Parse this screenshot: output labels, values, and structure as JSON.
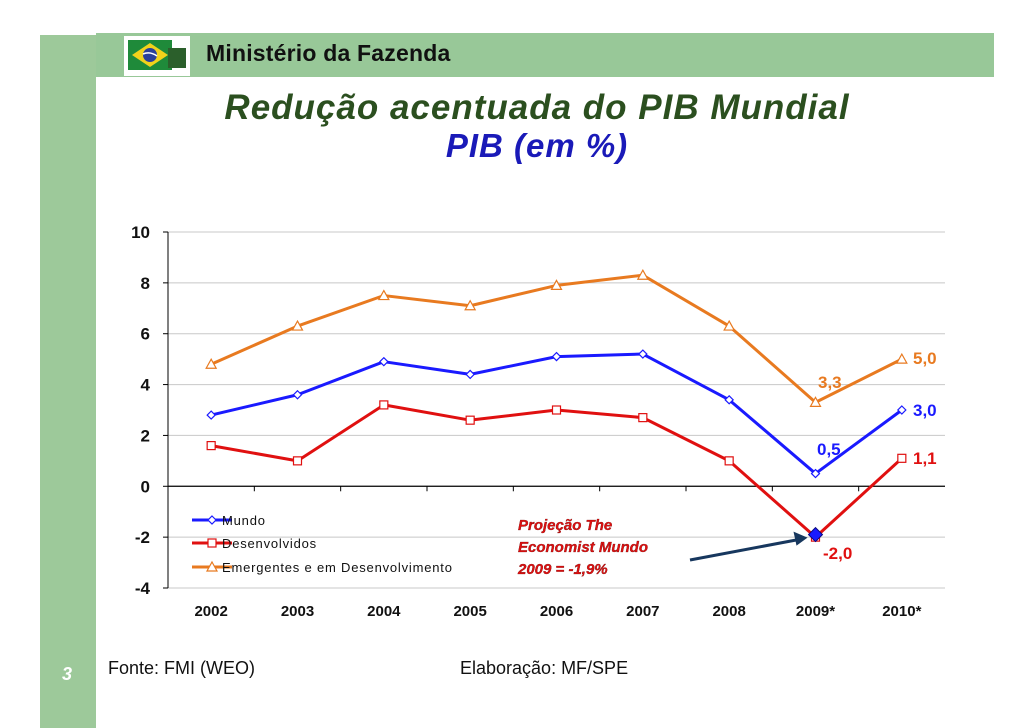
{
  "header": {
    "ministry": "Ministério da Fazenda",
    "logo": "brazil-flag-logo"
  },
  "title": {
    "line1": "Redução acentuada do PIB Mundial",
    "line2": "PIB (em %)"
  },
  "colors": {
    "mundo": "#1a1aff",
    "desenvolvidos": "#e01010",
    "emergentes": "#e87a20",
    "accent_green": "#98c898"
  },
  "chart_data": {
    "type": "line",
    "categories": [
      "2002",
      "2003",
      "2004",
      "2005",
      "2006",
      "2007",
      "2008",
      "2009*",
      "2010*"
    ],
    "ylim": [
      -4,
      10
    ],
    "yticks": [
      "-4",
      "-2",
      "0",
      "2",
      "4",
      "6",
      "8",
      "10"
    ],
    "series": [
      {
        "name": "Mundo",
        "values": [
          2.8,
          3.6,
          4.9,
          4.4,
          5.1,
          5.2,
          3.4,
          0.5,
          3.0
        ]
      },
      {
        "name": "Desenvolvidos",
        "values": [
          1.6,
          1.0,
          3.2,
          2.6,
          3.0,
          2.7,
          1.0,
          -2.0,
          1.1
        ]
      },
      {
        "name": "Emergentes e em Desenvolvimento",
        "values": [
          4.8,
          6.3,
          7.5,
          7.1,
          7.9,
          8.3,
          6.3,
          3.3,
          5.0
        ]
      }
    ],
    "data_labels": {
      "mundo_2009": "0,5",
      "mundo_2010": "3,0",
      "desenv_2009": "-2,0",
      "desenv_2010": "1,1",
      "emerg_2009": "3,3",
      "emerg_2010": "5,0"
    },
    "projection": {
      "label1": "Projeção The",
      "label2": "Economist Mundo",
      "label3": "2009 =  -1,9%",
      "value": -1.9
    }
  },
  "footer": {
    "page": "3",
    "source": "Fonte: FMI (WEO)",
    "elaboration": "Elaboração: MF/SPE"
  }
}
